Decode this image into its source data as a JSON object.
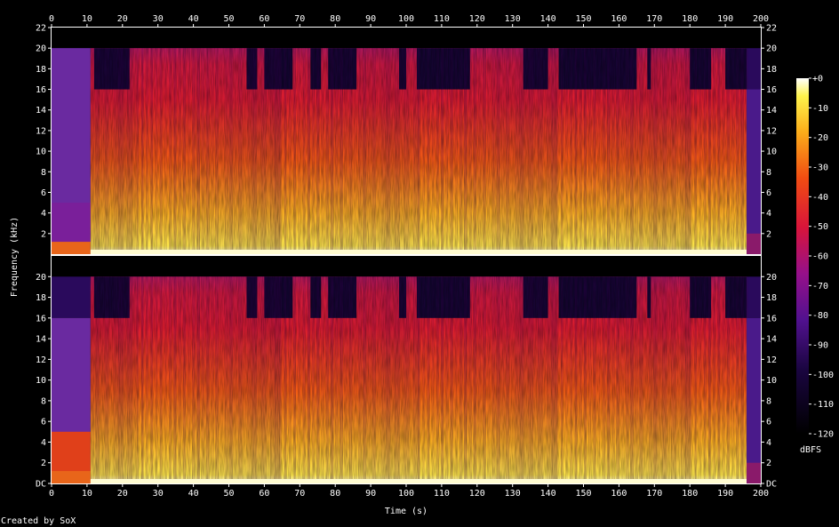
{
  "chart_data": {
    "type": "heatmap",
    "title": "",
    "xlabel": "Time (s)",
    "ylabel": "Frequency (kHz)",
    "colorbar_label": "dBFS",
    "credit": "Created by SoX",
    "xlim": [
      0,
      200
    ],
    "ylim_khz": [
      0,
      22
    ],
    "x_ticks": [
      "0",
      "10",
      "20",
      "30",
      "40",
      "50",
      "60",
      "70",
      "80",
      "90",
      "100",
      "110",
      "120",
      "130",
      "140",
      "150",
      "160",
      "170",
      "180",
      "190",
      "200"
    ],
    "y_ticks_top": [
      "2",
      "4",
      "6",
      "8",
      "10",
      "12",
      "14",
      "16",
      "18",
      "20",
      "22"
    ],
    "y_ticks_bottom": [
      "DC",
      "2",
      "4",
      "6",
      "8",
      "10",
      "12",
      "14",
      "16",
      "18",
      "20"
    ],
    "colorbar_ticks": [
      "+0",
      "-10",
      "-20",
      "-30",
      "-40",
      "-50",
      "-60",
      "-70",
      "-80",
      "-90",
      "-100",
      "-110",
      "-120"
    ],
    "colorbar_range_dbfs": [
      -120,
      0
    ],
    "channels": [
      {
        "name": "",
        "content_upper_khz_by_time": [
          [
            0,
            20
          ],
          [
            10,
            20
          ],
          [
            11,
            20
          ],
          [
            20,
            20
          ],
          [
            192,
            20
          ],
          [
            196,
            16
          ],
          [
            200,
            16
          ]
        ]
      },
      {
        "name": "",
        "content_upper_khz_by_time": [
          [
            0,
            16
          ],
          [
            10,
            16
          ],
          [
            11,
            20
          ],
          [
            20,
            20
          ],
          [
            192,
            20
          ],
          [
            196,
            16
          ],
          [
            200,
            16
          ]
        ]
      }
    ],
    "quiet_sections_s": [
      [
        0,
        11
      ],
      [
        196,
        200
      ]
    ],
    "colors": {
      "background": "#000000",
      "axis": "#ffffff"
    }
  }
}
